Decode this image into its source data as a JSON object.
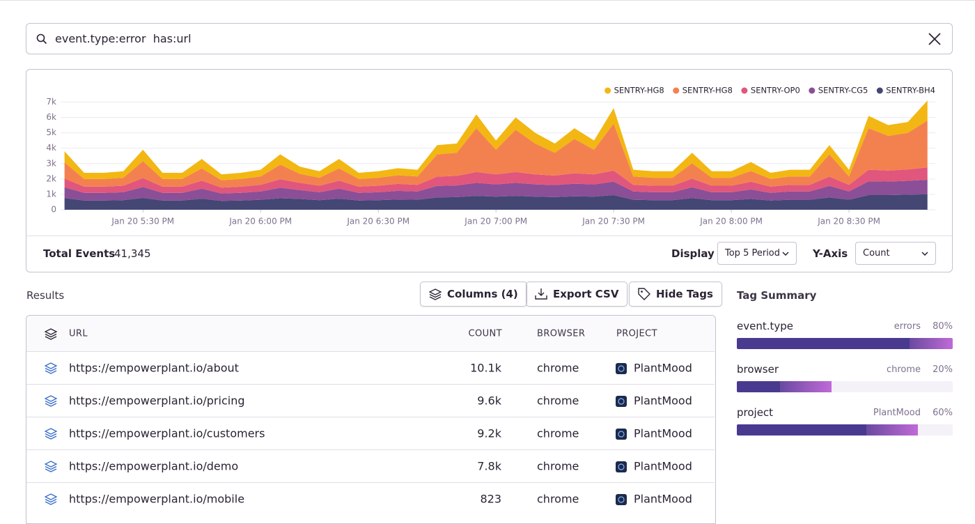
{
  "search": {
    "query": "event.type:error  has:url"
  },
  "chart_data": {
    "type": "stacked-area",
    "x": [
      "Jan 20 5:10 PM",
      "Jan 20 5:15 PM",
      "Jan 20 5:20 PM",
      "Jan 20 5:25 PM",
      "Jan 20 5:30 PM",
      "Jan 20 5:35 PM",
      "Jan 20 5:40 PM",
      "Jan 20 5:45 PM",
      "Jan 20 5:50 PM",
      "Jan 20 5:55 PM",
      "Jan 20 6:00 PM",
      "Jan 20 6:05 PM",
      "Jan 20 6:10 PM",
      "Jan 20 6:15 PM",
      "Jan 20 6:20 PM",
      "Jan 20 6:25 PM",
      "Jan 20 6:30 PM",
      "Jan 20 6:35 PM",
      "Jan 20 6:40 PM",
      "Jan 20 6:45 PM",
      "Jan 20 6:50 PM",
      "Jan 20 6:55 PM",
      "Jan 20 7:00 PM",
      "Jan 20 7:05 PM",
      "Jan 20 7:10 PM",
      "Jan 20 7:15 PM",
      "Jan 20 7:20 PM",
      "Jan 20 7:25 PM",
      "Jan 20 7:30 PM",
      "Jan 20 7:35 PM",
      "Jan 20 7:40 PM",
      "Jan 20 7:45 PM",
      "Jan 20 7:50 PM",
      "Jan 20 7:55 PM",
      "Jan 20 8:00 PM",
      "Jan 20 8:05 PM",
      "Jan 20 8:10 PM",
      "Jan 20 8:15 PM",
      "Jan 20 8:20 PM",
      "Jan 20 8:25 PM",
      "Jan 20 8:30 PM",
      "Jan 20 8:35 PM",
      "Jan 20 8:40 PM",
      "Jan 20 8:45 PM",
      "Jan 20 8:50 PM"
    ],
    "xlim": [
      "Jan 20 5:09 PM",
      "Jan 20 8:52 PM"
    ],
    "xticks": [
      "Jan 20 5:30 PM",
      "Jan 20 6:00 PM",
      "Jan 20 6:30 PM",
      "Jan 20 7:00 PM",
      "Jan 20 7:30 PM",
      "Jan 20 8:00 PM",
      "Jan 20 8:30 PM"
    ],
    "ylim": [
      0,
      7200
    ],
    "yticks": [
      0,
      {
        "value": 1000,
        "label": "1k"
      },
      {
        "value": 2000,
        "label": "2k"
      },
      {
        "value": 3000,
        "label": "3k"
      },
      {
        "value": 4000,
        "label": "4k"
      },
      {
        "value": 5000,
        "label": "5k"
      },
      {
        "value": 6000,
        "label": "6k"
      },
      {
        "value": 7000,
        "label": "7k"
      }
    ],
    "grid": true,
    "legend": "top-right",
    "series": [
      {
        "name": "SENTRY-HG8",
        "color": "#f2b712",
        "values": [
          720,
          400,
          400,
          420,
          740,
          400,
          400,
          610,
          380,
          400,
          440,
          670,
          470,
          420,
          610,
          400,
          420,
          460,
          440,
          600,
          600,
          900,
          600,
          800,
          700,
          600,
          700,
          600,
          1000,
          440,
          420,
          420,
          680,
          420,
          420,
          580,
          400,
          440,
          440,
          600,
          440,
          800,
          700,
          700,
          1300
        ]
      },
      {
        "name": "SENTRY-HG8",
        "color": "#f38150",
        "values": [
          1050,
          500,
          500,
          520,
          1100,
          500,
          500,
          800,
          480,
          500,
          540,
          950,
          580,
          520,
          800,
          500,
          520,
          560,
          540,
          1450,
          1500,
          2850,
          1600,
          2750,
          2000,
          1480,
          2230,
          1600,
          3050,
          540,
          520,
          520,
          1000,
          520,
          520,
          700,
          500,
          540,
          540,
          1450,
          540,
          2700,
          2250,
          2380,
          3050
        ]
      },
      {
        "name": "SENTRY-OP0",
        "color": "#e1567c",
        "values": [
          570,
          400,
          400,
          420,
          580,
          400,
          400,
          520,
          380,
          400,
          430,
          550,
          470,
          420,
          520,
          400,
          420,
          450,
          430,
          600,
          620,
          700,
          650,
          700,
          650,
          620,
          680,
          650,
          720,
          430,
          420,
          420,
          560,
          420,
          420,
          500,
          400,
          430,
          430,
          600,
          430,
          750,
          720,
          740,
          800
        ]
      },
      {
        "name": "SENTRY-CG5",
        "color": "#8a4f96",
        "values": [
          700,
          500,
          500,
          520,
          710,
          500,
          500,
          650,
          480,
          500,
          540,
          680,
          580,
          520,
          650,
          500,
          520,
          560,
          540,
          750,
          760,
          850,
          800,
          850,
          800,
          780,
          820,
          800,
          880,
          540,
          520,
          520,
          700,
          520,
          520,
          620,
          500,
          540,
          540,
          750,
          540,
          900,
          880,
          900,
          950
        ]
      },
      {
        "name": "SENTRY-BH4",
        "color": "#444674",
        "values": [
          760,
          600,
          600,
          620,
          770,
          600,
          600,
          720,
          580,
          600,
          650,
          750,
          700,
          620,
          720,
          600,
          620,
          670,
          650,
          800,
          820,
          900,
          850,
          900,
          850,
          820,
          870,
          850,
          950,
          650,
          620,
          620,
          760,
          620,
          620,
          700,
          600,
          650,
          650,
          800,
          650,
          950,
          950,
          980,
          1000
        ]
      }
    ]
  },
  "footer": {
    "total_label": "Total Events",
    "total_value": "41,345",
    "display_label": "Display",
    "display_value": "Top 5 Period",
    "yaxis_label": "Y-Axis",
    "yaxis_value": "Count"
  },
  "results": {
    "title": "Results",
    "buttons": [
      "Columns (4)",
      "Export CSV",
      "Hide Tags"
    ],
    "table": {
      "headers": [
        "URL",
        "COUNT",
        "BROWSER",
        "PROJECT"
      ],
      "rows": [
        [
          "https://empowerplant.io/about",
          "10.1k",
          "chrome",
          "PlantMood"
        ],
        [
          "https://empowerplant.io/pricing",
          "9.6k",
          "chrome",
          "PlantMood"
        ],
        [
          "https://empowerplant.io/customers",
          "9.2k",
          "chrome",
          "PlantMood"
        ],
        [
          "https://empowerplant.io/demo",
          "7.8k",
          "chrome",
          "PlantMood"
        ],
        [
          "https://empowerplant.io/mobile",
          "823",
          "chrome",
          "PlantMood"
        ]
      ]
    }
  },
  "tag_summary": {
    "title": "Tag Summary",
    "tags": [
      {
        "key": "event.type",
        "top": "errors",
        "percent": {
          "value": 80,
          "label": "80%"
        }
      },
      {
        "key": "browser",
        "top": "chrome",
        "percent": {
          "value": 20,
          "label": "20%"
        }
      },
      {
        "key": "project",
        "top": "PlantMood",
        "percent": {
          "value": 60,
          "label": "60%"
        }
      }
    ]
  }
}
